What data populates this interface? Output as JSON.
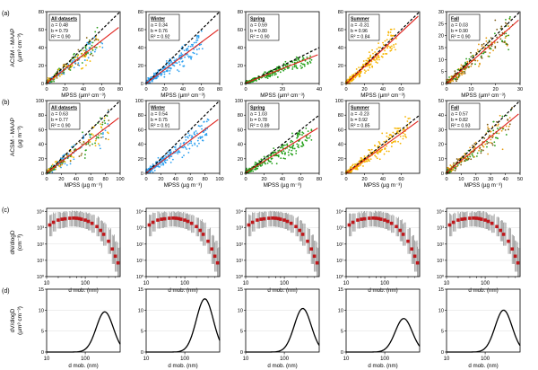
{
  "rows": [
    {
      "letter": "(a)",
      "ylabel": [
        "ACSM - MAAP",
        "(µm³ cm⁻³)"
      ],
      "xlabel": "MPSS (µm³ cm⁻³)",
      "type": "scatter",
      "panels": [
        {
          "name": "All datasets",
          "stats": [
            "a = 0.48",
            "b = 0.79",
            "R² = 0.90"
          ],
          "xlim": [
            0,
            80
          ],
          "ylim": [
            0,
            80
          ],
          "xticks": [
            0,
            20,
            40,
            60,
            80
          ],
          "yticks": [
            0,
            20,
            40,
            60,
            80
          ],
          "slope": 0.79,
          "intercept": 0.48,
          "colors": [
            "#2ca0f0",
            "#f4b800",
            "#2a9d1a",
            "#8b6a1c"
          ],
          "max": 62
        },
        {
          "name": "Winter",
          "stats": [
            "a = 0.34",
            "b = 0.76",
            "R² = 0.92"
          ],
          "xlim": [
            0,
            80
          ],
          "ylim": [
            0,
            80
          ],
          "xticks": [
            0,
            20,
            40,
            60,
            80
          ],
          "yticks": [
            0,
            20,
            40,
            60,
            80
          ],
          "slope": 0.76,
          "intercept": 0.34,
          "colors": [
            "#2ca0f0"
          ],
          "max": 62
        },
        {
          "name": "Spring",
          "stats": [
            "a = 0.59",
            "b = 0.80",
            "R² = 0.90"
          ],
          "xlim": [
            0,
            40
          ],
          "ylim": [
            0,
            80
          ],
          "xticks": [
            0,
            20,
            40
          ],
          "yticks": [
            0,
            20,
            40,
            60,
            80
          ],
          "slope": 0.8,
          "intercept": 0.59,
          "colors": [
            "#23a019"
          ],
          "max": 36
        },
        {
          "name": "Summer",
          "stats": [
            "a = -0.31",
            "b = 0.96",
            "R² = 0.84"
          ],
          "xlim": [
            0,
            80
          ],
          "ylim": [
            0,
            80
          ],
          "xticks": [
            0,
            20,
            40,
            60
          ],
          "yticks": [
            0,
            20,
            40,
            60,
            80
          ],
          "slope": 0.96,
          "intercept": -0.31,
          "colors": [
            "#f6b400"
          ],
          "max": 55
        },
        {
          "name": "Fall",
          "stats": [
            "a = 0.03",
            "b = 0.90",
            "R² = 0.90"
          ],
          "xlim": [
            0,
            30
          ],
          "ylim": [
            0,
            30
          ],
          "xticks": [
            0,
            10,
            20,
            30
          ],
          "yticks": [
            0,
            5,
            10,
            15,
            20,
            25,
            30
          ],
          "slope": 0.9,
          "intercept": 0.03,
          "colors": [
            "#7a5a14",
            "#e69a10",
            "#2a9d1a"
          ],
          "max": 27
        }
      ]
    },
    {
      "letter": "(b)",
      "ylabel": [
        "ACSM - MAAP",
        "(µg m⁻³)"
      ],
      "xlabel": "MPSS (µg m⁻³)",
      "type": "scatter",
      "panels": [
        {
          "name": "All datasets",
          "stats": [
            "a = 0.63",
            "b = 0.77",
            "R² = 0.90"
          ],
          "xlim": [
            0,
            100
          ],
          "ylim": [
            0,
            100
          ],
          "xticks": [
            0,
            20,
            40,
            60,
            80,
            100
          ],
          "yticks": [
            0,
            20,
            40,
            60,
            80,
            100
          ],
          "slope": 0.77,
          "intercept": 0.63,
          "colors": [
            "#2ca0f0",
            "#f4b800",
            "#2a9d1a",
            "#8b6a1c"
          ],
          "max": 85
        },
        {
          "name": "Winter",
          "stats": [
            "a = 0.54",
            "b = 0.75",
            "R² = 0.91"
          ],
          "xlim": [
            0,
            100
          ],
          "ylim": [
            0,
            100
          ],
          "xticks": [
            0,
            20,
            40,
            60,
            80,
            100
          ],
          "yticks": [
            0,
            20,
            40,
            60,
            80,
            100
          ],
          "slope": 0.75,
          "intercept": 0.54,
          "colors": [
            "#2ca0f0"
          ],
          "max": 85
        },
        {
          "name": "Spring",
          "stats": [
            "a = 1.03",
            "b = 0.78",
            "R² = 0.89"
          ],
          "xlim": [
            0,
            80
          ],
          "ylim": [
            0,
            100
          ],
          "xticks": [
            0,
            20,
            40,
            60,
            80
          ],
          "yticks": [
            0,
            20,
            40,
            60,
            80,
            100
          ],
          "slope": 0.78,
          "intercept": 1.03,
          "colors": [
            "#23a019"
          ],
          "max": 72
        },
        {
          "name": "Summer",
          "stats": [
            "a = -0.23",
            "b = 0.92",
            "R² = 0.85"
          ],
          "xlim": [
            0,
            80
          ],
          "ylim": [
            0,
            100
          ],
          "xticks": [
            0,
            20,
            40,
            60
          ],
          "yticks": [
            0,
            20,
            40,
            60,
            80,
            100
          ],
          "slope": 0.92,
          "intercept": -0.23,
          "colors": [
            "#f6b400"
          ],
          "max": 70
        },
        {
          "name": "Fall",
          "stats": [
            "a = 0.57",
            "b = 0.82",
            "R² = 0.93"
          ],
          "xlim": [
            0,
            50
          ],
          "ylim": [
            0,
            50
          ],
          "xticks": [
            0,
            10,
            20,
            30,
            40,
            50
          ],
          "yticks": [
            0,
            10,
            20,
            30,
            40,
            50
          ],
          "slope": 0.82,
          "intercept": 0.57,
          "colors": [
            "#7a5a14",
            "#e69a10",
            "#2a9d1a"
          ],
          "max": 45
        }
      ]
    },
    {
      "letter": "(c)",
      "ylabel": [
        "dN/dlogD",
        "(cm⁻³)"
      ],
      "xlabel": "d mob. (nm)",
      "type": "number",
      "xticklabels": [
        "10",
        "100"
      ],
      "yticklabels": [
        "10⁰",
        "10¹",
        "10²",
        "10³",
        "10⁴"
      ],
      "curve_d_nm": [
        12,
        15,
        20,
        25,
        30,
        40,
        50,
        60,
        70,
        80,
        100,
        120,
        150,
        200,
        250,
        300,
        400,
        500,
        600,
        700
      ],
      "curve_dNdlogD": [
        1500,
        2200,
        3000,
        3400,
        3600,
        3900,
        4000,
        3900,
        3700,
        3400,
        3000,
        2500,
        1900,
        1200,
        700,
        400,
        150,
        50,
        18,
        7
      ],
      "curve_p10": [
        300,
        600,
        900,
        1000,
        1100,
        1200,
        1200,
        1150,
        1100,
        1000,
        850,
        700,
        500,
        300,
        150,
        80,
        25,
        6,
        2,
        1
      ],
      "curve_p90": [
        7000,
        8000,
        9000,
        9500,
        9800,
        10000,
        10000,
        9900,
        9700,
        9300,
        8500,
        7500,
        6200,
        4500,
        3000,
        2000,
        900,
        350,
        150,
        60
      ]
    },
    {
      "letter": "(d)",
      "ylabel": [
        "dV/dlogD",
        "(µm³ cm⁻³)"
      ],
      "xlabel": "d mob. (nm)",
      "type": "volume",
      "xticklabels": [
        "10",
        "100"
      ],
      "yticks": [
        0,
        5,
        10,
        15
      ],
      "panels": [
        {
          "peak_nm": 320,
          "peak_value": 9.6
        },
        {
          "peak_nm": 330,
          "peak_value": 12.7
        },
        {
          "peak_nm": 300,
          "peak_value": 10.4
        },
        {
          "peak_nm": 310,
          "peak_value": 8.0
        },
        {
          "peak_nm": 300,
          "peak_value": 10.0
        }
      ]
    }
  ],
  "chart_data": [
    {
      "type": "scatter",
      "title": "All datasets",
      "xlabel": "MPSS (µm³ cm⁻³)",
      "ylabel": "ACSM - MAAP (µm³ cm⁻³)",
      "xlim": [
        0,
        80
      ],
      "ylim": [
        0,
        80
      ],
      "fit": {
        "a": 0.48,
        "b": 0.79,
        "R2": 0.9
      }
    },
    {
      "type": "scatter",
      "title": "Winter",
      "xlabel": "MPSS (µm³ cm⁻³)",
      "ylabel": "ACSM - MAAP (µm³ cm⁻³)",
      "xlim": [
        0,
        80
      ],
      "ylim": [
        0,
        80
      ],
      "fit": {
        "a": 0.34,
        "b": 0.76,
        "R2": 0.92
      }
    },
    {
      "type": "scatter",
      "title": "Spring",
      "xlabel": "MPSS (µm³ cm⁻³)",
      "ylabel": "ACSM - MAAP (µm³ cm⁻³)",
      "xlim": [
        0,
        40
      ],
      "ylim": [
        0,
        80
      ],
      "fit": {
        "a": 0.59,
        "b": 0.8,
        "R2": 0.9
      }
    },
    {
      "type": "scatter",
      "title": "Summer",
      "xlabel": "MPSS (µm³ cm⁻³)",
      "ylabel": "ACSM - MAAP (µm³ cm⁻³)",
      "xlim": [
        0,
        80
      ],
      "ylim": [
        0,
        80
      ],
      "fit": {
        "a": -0.31,
        "b": 0.96,
        "R2": 0.84
      }
    },
    {
      "type": "scatter",
      "title": "Fall",
      "xlabel": "MPSS (µm³ cm⁻³)",
      "ylabel": "ACSM - MAAP (µm³ cm⁻³)",
      "xlim": [
        0,
        30
      ],
      "ylim": [
        0,
        30
      ],
      "fit": {
        "a": 0.03,
        "b": 0.9,
        "R2": 0.9
      }
    },
    {
      "type": "scatter",
      "title": "All datasets",
      "xlabel": "MPSS (µg m⁻³)",
      "ylabel": "ACSM - MAAP (µg m⁻³)",
      "xlim": [
        0,
        100
      ],
      "ylim": [
        0,
        100
      ],
      "fit": {
        "a": 0.63,
        "b": 0.77,
        "R2": 0.9
      }
    },
    {
      "type": "scatter",
      "title": "Winter",
      "xlabel": "MPSS (µg m⁻³)",
      "ylabel": "ACSM - MAAP (µg m⁻³)",
      "xlim": [
        0,
        100
      ],
      "ylim": [
        0,
        100
      ],
      "fit": {
        "a": 0.54,
        "b": 0.75,
        "R2": 0.91
      }
    },
    {
      "type": "scatter",
      "title": "Spring",
      "xlabel": "MPSS (µg m⁻³)",
      "ylabel": "ACSM - MAAP (µg m⁻³)",
      "xlim": [
        0,
        80
      ],
      "ylim": [
        0,
        100
      ],
      "fit": {
        "a": 1.03,
        "b": 0.78,
        "R2": 0.89
      }
    },
    {
      "type": "scatter",
      "title": "Summer",
      "xlabel": "MPSS (µg m⁻³)",
      "ylabel": "ACSM - MAAP (µg m⁻³)",
      "xlim": [
        0,
        80
      ],
      "ylim": [
        0,
        100
      ],
      "fit": {
        "a": -0.23,
        "b": 0.92,
        "R2": 0.85
      }
    },
    {
      "type": "scatter",
      "title": "Fall",
      "xlabel": "MPSS (µg m⁻³)",
      "ylabel": "ACSM - MAAP (µg m⁻³)",
      "xlim": [
        0,
        50
      ],
      "ylim": [
        0,
        50
      ],
      "fit": {
        "a": 0.57,
        "b": 0.82,
        "R2": 0.93
      }
    },
    {
      "type": "line",
      "xlabel": "d mob. (nm)",
      "ylabel": "dN/dlogD (cm⁻³)",
      "xscale": "log",
      "yscale": "log",
      "panels": 5
    },
    {
      "type": "line",
      "xlabel": "d mob. (nm)",
      "ylabel": "dV/dlogD (µm³ cm⁻³)",
      "xscale": "log",
      "ylim": [
        0,
        15
      ],
      "panels": 5,
      "peaks": [
        9.6,
        12.7,
        10.4,
        8.0,
        10.0
      ]
    }
  ]
}
